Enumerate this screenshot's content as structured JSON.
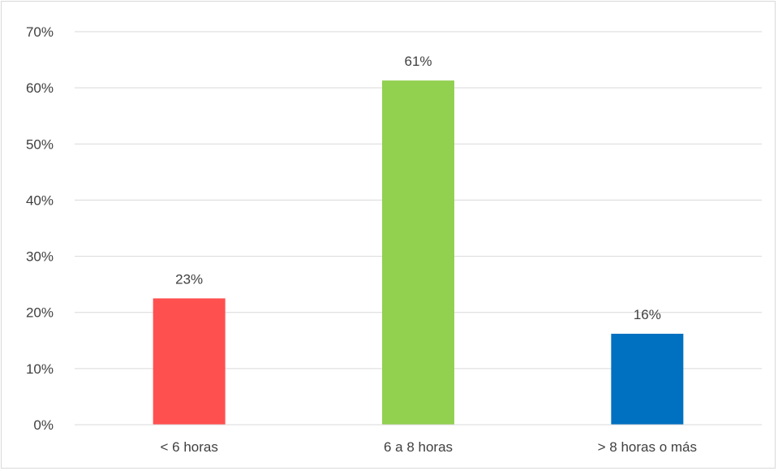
{
  "chart_data": {
    "type": "bar",
    "categories": [
      "< 6 horas",
      "6 a 8 horas",
      "> 8 horas o más"
    ],
    "values": [
      22.5,
      61.3,
      16.2
    ],
    "data_labels": [
      "23%",
      "61%",
      "16%"
    ],
    "colors": [
      "#ff5050",
      "#92d050",
      "#0070c0"
    ],
    "ylim": [
      0,
      70
    ],
    "yticks": [
      0,
      10,
      20,
      30,
      40,
      50,
      60,
      70
    ],
    "ytick_labels": [
      "0%",
      "10%",
      "20%",
      "30%",
      "40%",
      "50%",
      "60%",
      "70%"
    ],
    "grid": true,
    "gridline_color": "#d9d9d9",
    "legend": "none"
  }
}
